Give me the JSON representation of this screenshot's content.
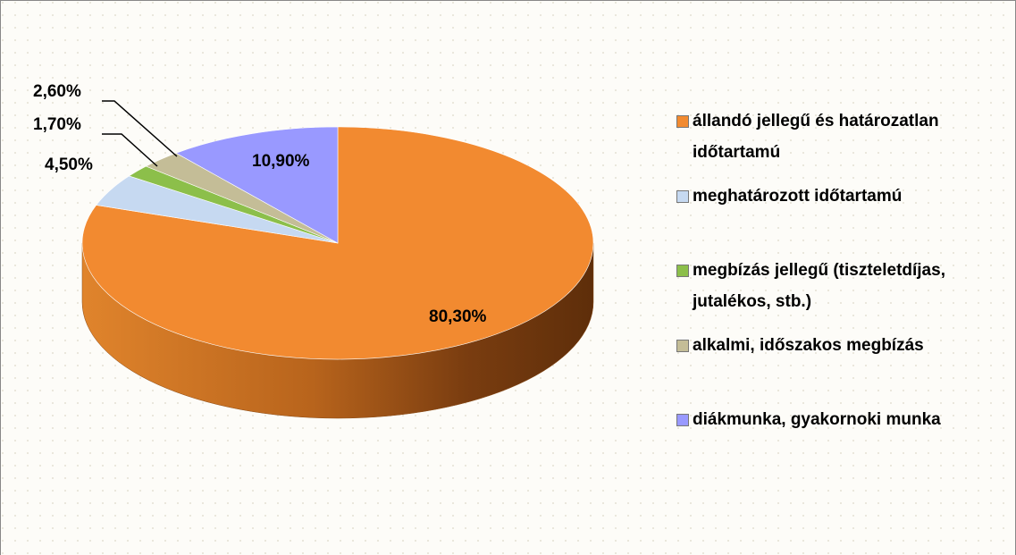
{
  "chart_data": {
    "type": "pie",
    "categories": [
      "állandó jellegű és határozatlan időtartamú",
      "meghatározott időtartamú",
      "megbízás jellegű (tiszteletdíjas, jutalékos, stb.)",
      "alkalmi, időszakos megbízás",
      "diákmunka, gyakornoki munka"
    ],
    "values": [
      80.3,
      4.5,
      1.7,
      2.6,
      10.9
    ],
    "value_labels": [
      "80,30%",
      "4,50%",
      "1,70%",
      "2,60%",
      "10,90%"
    ],
    "colors": [
      "#f28a30",
      "#c6d9f1",
      "#8cbf4a",
      "#c4bd97",
      "#9999ff"
    ],
    "legend": "right"
  }
}
